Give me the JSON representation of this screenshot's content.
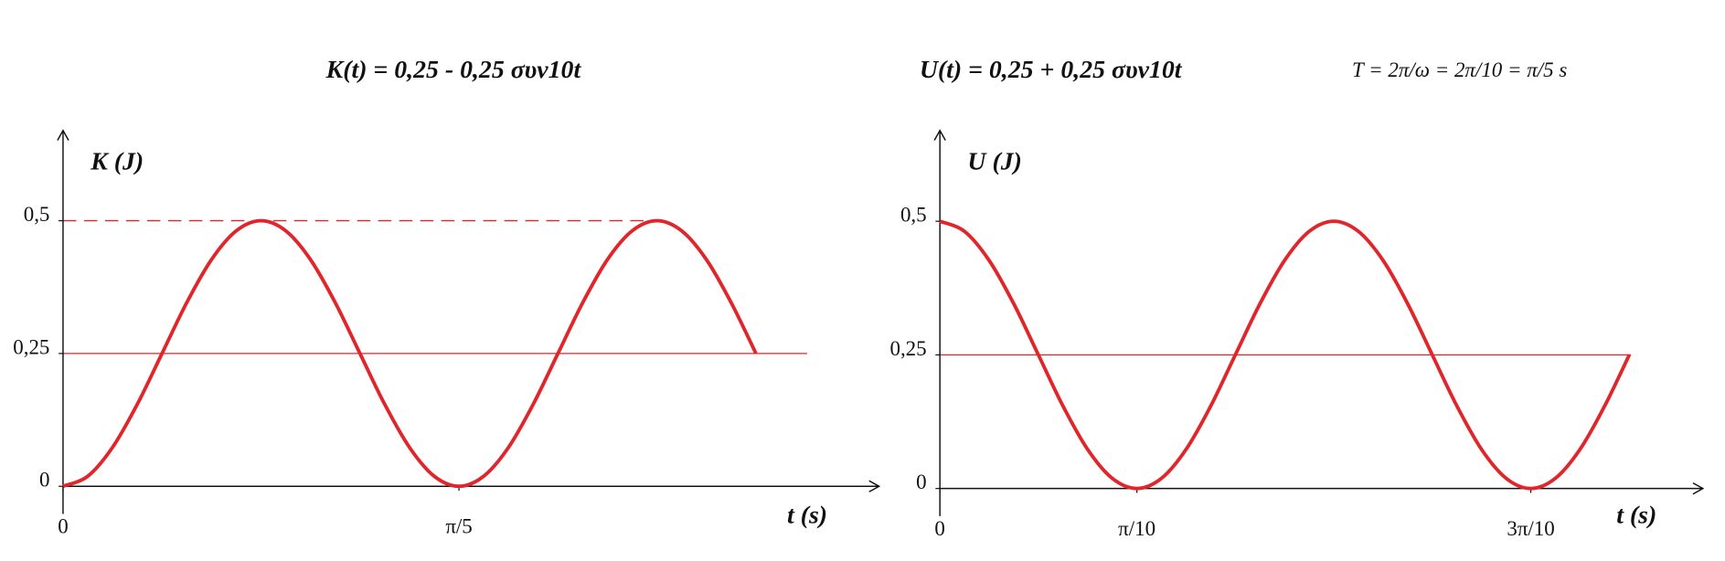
{
  "chart_data": [
    {
      "type": "line",
      "title": "K(t) =  0,25  -  0,25 συν10t",
      "ylabel": "K (J)",
      "xlabel": "t (s)",
      "x": [
        0,
        0.0393,
        0.0785,
        0.1178,
        0.1571,
        0.1963,
        0.2356,
        0.2749,
        0.3142,
        0.3534,
        0.3927,
        0.432,
        0.4712,
        0.5105,
        0.5498,
        0.589,
        0.6283,
        0.6676,
        0.7069,
        0.7461,
        0.7854,
        0.8247,
        0.8639,
        0.9032,
        0.9425,
        0.9817,
        1.021,
        1.0603,
        1.0996
      ],
      "values": [
        0,
        0.019,
        0.0732,
        0.1543,
        0.25,
        0.3457,
        0.4268,
        0.481,
        0.5,
        0.481,
        0.4268,
        0.3457,
        0.25,
        0.1543,
        0.0732,
        0.019,
        0,
        0.019,
        0.0732,
        0.1543,
        0.25,
        0.3457,
        0.4268,
        0.481,
        0.5,
        0.481,
        0.4268,
        0.3457,
        0.25
      ],
      "color": "#e0252b",
      "xlim": [
        0,
        1.295
      ],
      "ylim": [
        0,
        0.67
      ],
      "xticks": [
        0,
        {
          "value": 0.6283,
          "label": "π/5"
        }
      ],
      "yticks": [
        0,
        {
          "value": 0.25,
          "label": "0,25"
        },
        {
          "value": 0.5,
          "label": "0,5"
        }
      ],
      "reference_lines": [
        {
          "value": 0.25,
          "style": "solid"
        },
        {
          "value": 0.5,
          "style": "dashed"
        }
      ]
    },
    {
      "type": "line",
      "title": "U(t) =  0,25  +  0,25 συν10t",
      "annotation": "T = 2π/ω = 2π/10 = π/5 s",
      "ylabel": "U (J)",
      "xlabel": "t (s)",
      "x": [
        0,
        0.0393,
        0.0785,
        0.1178,
        0.1571,
        0.1963,
        0.2356,
        0.2749,
        0.3142,
        0.3534,
        0.3927,
        0.432,
        0.4712,
        0.5105,
        0.5498,
        0.589,
        0.6283,
        0.6676,
        0.7069,
        0.7461,
        0.7854,
        0.8247,
        0.8639,
        0.9032,
        0.9425,
        0.9817,
        1.021,
        1.0603,
        1.0996
      ],
      "values": [
        0.5,
        0.481,
        0.4268,
        0.3457,
        0.25,
        0.1543,
        0.0732,
        0.019,
        0,
        0.019,
        0.0732,
        0.1543,
        0.25,
        0.3457,
        0.4268,
        0.481,
        0.5,
        0.481,
        0.4268,
        0.3457,
        0.25,
        0.1543,
        0.0732,
        0.019,
        0,
        0.019,
        0.0732,
        0.1543,
        0.25
      ],
      "color": "#e0252b",
      "xlim": [
        0,
        1.217
      ],
      "ylim": [
        0,
        0.67
      ],
      "xticks": [
        0,
        {
          "value": 0.3142,
          "label": "π/10"
        },
        {
          "value": 0.9425,
          "label": "3π/10"
        }
      ],
      "yticks": [
        0,
        {
          "value": 0.25,
          "label": "0,25"
        },
        {
          "value": 0.5,
          "label": "0,5"
        }
      ],
      "reference_lines": [
        {
          "value": 0.25,
          "style": "solid"
        }
      ]
    }
  ]
}
